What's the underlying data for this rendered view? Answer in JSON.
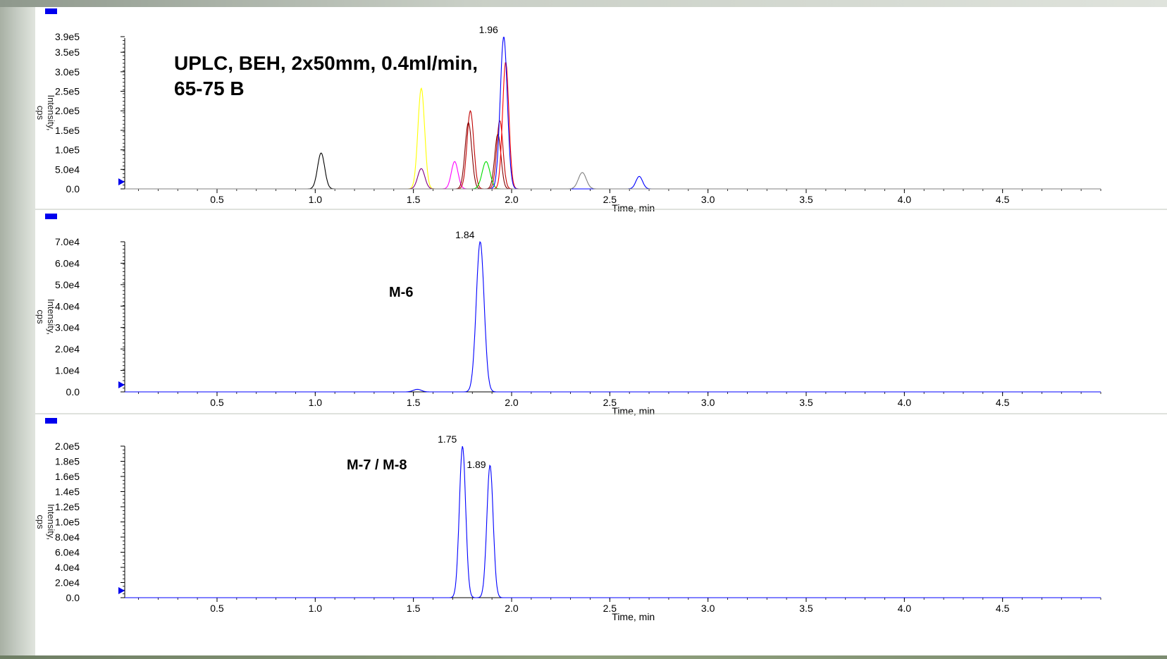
{
  "chart_data": [
    {
      "type": "line",
      "title": "UPLC, BEH, 2x50mm, 0.4ml/min,\n65-75 B",
      "xlabel": "Time, min",
      "ylabel": "Intensity, cps",
      "xlim": [
        0.03,
        5.0
      ],
      "ylim": [
        0,
        390000
      ],
      "x_ticks": [
        0.5,
        1.0,
        1.5,
        2.0,
        2.5,
        3.0,
        3.5,
        4.0,
        4.5
      ],
      "x_tick_labels": [
        "0.5",
        "1.0",
        "1.5",
        "2.0",
        "2.5",
        "3.0",
        "3.5",
        "4.0",
        "4.5"
      ],
      "y_ticks": [
        0,
        50000,
        100000,
        150000,
        200000,
        250000,
        300000,
        350000,
        390000
      ],
      "y_tick_labels": [
        "0.0",
        "5.0e4",
        "1.0e5",
        "1.5e5",
        "2.0e5",
        "2.5e5",
        "3.0e5",
        "3.5e5",
        "3.9e5"
      ],
      "annotations": [
        {
          "x": 1.96,
          "y": 390000,
          "text": "1.96"
        }
      ],
      "series": [
        {
          "color": "#000000",
          "peaks": [
            {
              "rt": 1.03,
              "height": 92000,
              "width": 0.018
            }
          ]
        },
        {
          "color": "#ffff00",
          "peaks": [
            {
              "rt": 1.54,
              "height": 258000,
              "width": 0.017
            }
          ]
        },
        {
          "color": "#800080",
          "peaks": [
            {
              "rt": 1.54,
              "height": 52000,
              "width": 0.018
            }
          ]
        },
        {
          "color": "#ff00ff",
          "peaks": [
            {
              "rt": 1.71,
              "height": 70000,
              "width": 0.017
            }
          ]
        },
        {
          "color": "#c00000",
          "peaks": [
            {
              "rt": 1.79,
              "height": 200000,
              "width": 0.017
            },
            {
              "rt": 1.94,
              "height": 175000,
              "width": 0.016
            }
          ]
        },
        {
          "color": "#800000",
          "peaks": [
            {
              "rt": 1.78,
              "height": 170000,
              "width": 0.017
            },
            {
              "rt": 1.93,
              "height": 140000,
              "width": 0.016
            }
          ]
        },
        {
          "color": "#00dd00",
          "peaks": [
            {
              "rt": 1.87,
              "height": 70000,
              "width": 0.02
            }
          ]
        },
        {
          "color": "#ff0000",
          "peaks": [
            {
              "rt": 1.97,
              "height": 325000,
              "width": 0.016
            }
          ]
        },
        {
          "color": "#0000ff",
          "peaks": [
            {
              "rt": 1.96,
              "height": 390000,
              "width": 0.018
            },
            {
              "rt": 2.65,
              "height": 32000,
              "width": 0.017
            }
          ]
        },
        {
          "color": "#808080",
          "peaks": [
            {
              "rt": 2.36,
              "height": 42000,
              "width": 0.02
            }
          ]
        }
      ]
    },
    {
      "type": "line",
      "title": "M-6",
      "xlabel": "Time, min",
      "ylabel": "Intensity, cps",
      "xlim": [
        0.03,
        5.0
      ],
      "ylim": [
        0,
        70000
      ],
      "x_ticks": [
        0.5,
        1.0,
        1.5,
        2.0,
        2.5,
        3.0,
        3.5,
        4.0,
        4.5
      ],
      "x_tick_labels": [
        "0.5",
        "1.0",
        "1.5",
        "2.0",
        "2.5",
        "3.0",
        "3.5",
        "4.0",
        "4.5"
      ],
      "y_ticks": [
        0,
        10000,
        20000,
        30000,
        40000,
        50000,
        60000,
        70000
      ],
      "y_tick_labels": [
        "0.0",
        "1.0e4",
        "2.0e4",
        "3.0e4",
        "4.0e4",
        "5.0e4",
        "6.0e4",
        "7.0e4"
      ],
      "annotations": [
        {
          "x": 1.84,
          "y": 70000,
          "text": "1.84"
        }
      ],
      "series": [
        {
          "color": "#0000ff",
          "peaks": [
            {
              "rt": 1.84,
              "height": 70000,
              "width": 0.02
            },
            {
              "rt": 1.52,
              "height": 1200,
              "width": 0.02
            }
          ]
        }
      ]
    },
    {
      "type": "line",
      "title": "M-7 / M-8",
      "xlabel": "Time, min",
      "ylabel": "Intensity, cps",
      "xlim": [
        0.03,
        5.0
      ],
      "ylim": [
        0,
        200000
      ],
      "x_ticks": [
        0.5,
        1.0,
        1.5,
        2.0,
        2.5,
        3.0,
        3.5,
        4.0,
        4.5
      ],
      "x_tick_labels": [
        "0.5",
        "1.0",
        "1.5",
        "2.0",
        "2.5",
        "3.0",
        "3.5",
        "4.0",
        "4.5"
      ],
      "y_ticks": [
        0,
        20000,
        40000,
        60000,
        80000,
        100000,
        120000,
        140000,
        160000,
        180000,
        200000
      ],
      "y_tick_labels": [
        "0.0",
        "2.0e4",
        "4.0e4",
        "6.0e4",
        "8.0e4",
        "1.0e5",
        "1.2e5",
        "1.4e5",
        "1.6e5",
        "1.8e5",
        "2.0e5"
      ],
      "annotations": [
        {
          "x": 1.75,
          "y": 200000,
          "text": "1.75"
        },
        {
          "x": 1.89,
          "y": 175000,
          "text": "1.89"
        }
      ],
      "series": [
        {
          "color": "#0000ff",
          "peaks": [
            {
              "rt": 1.75,
              "height": 200000,
              "width": 0.016
            },
            {
              "rt": 1.89,
              "height": 175000,
              "width": 0.016
            }
          ]
        }
      ]
    }
  ]
}
